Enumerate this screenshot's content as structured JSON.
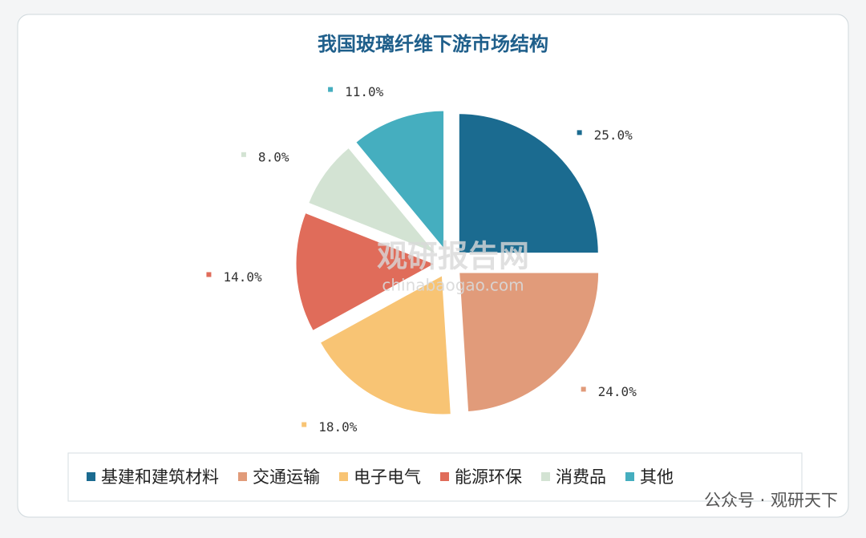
{
  "chart_data": {
    "type": "pie",
    "title": "我国玻璃纤维下游市场结构",
    "categories": [
      "基建和建筑材料",
      "交通运输",
      "电子电气",
      "能源环保",
      "消费品",
      "其他"
    ],
    "values": [
      25,
      24,
      18,
      14,
      8,
      11
    ],
    "value_labels": [
      "25.0%",
      "24.0%",
      "18.0%",
      "14.0%",
      "8.0%",
      "11.0%"
    ],
    "colors": [
      "#1b6b90",
      "#e19b7a",
      "#f8c474",
      "#e06c5a",
      "#d3e3d3",
      "#45aebf"
    ],
    "legend": "bottom",
    "watermark": [
      "观研报告网",
      "chinabaogao.com"
    ],
    "footer": "公众号 · 观研天下"
  }
}
